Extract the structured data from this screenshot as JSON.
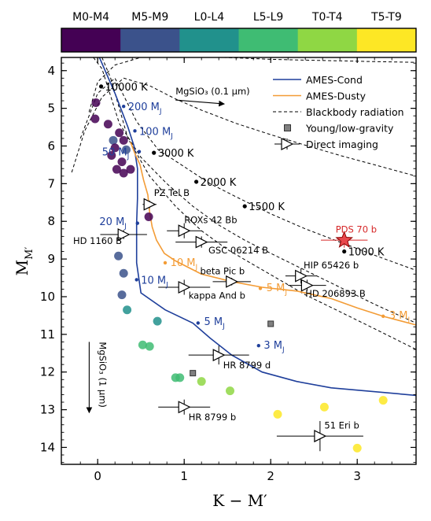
{
  "chart_data": {
    "type": "scatter",
    "xlabel": "K − M′",
    "ylabel": "M",
    "ylabel_sub": "M′",
    "xlim": [
      -0.42,
      3.68
    ],
    "ylim": [
      14.45,
      3.65
    ],
    "y_inverted": true,
    "xticks": [
      "0",
      "1",
      "2",
      "3"
    ],
    "xtick_values": [
      0,
      1,
      2,
      3
    ],
    "yticks": [
      "4",
      "5",
      "6",
      "7",
      "8",
      "9",
      "10",
      "11",
      "12",
      "13",
      "14"
    ],
    "ytick_values": [
      4,
      5,
      6,
      7,
      8,
      9,
      10,
      11,
      12,
      13,
      14
    ],
    "colorbar": {
      "labels": [
        "M0-M4",
        "M5-M9",
        "L0-L4",
        "L5-L9",
        "T0-T4",
        "T5-T9"
      ],
      "colors": [
        "#440154",
        "#3b528b",
        "#21918c",
        "#3fbc73",
        "#8fd744",
        "#fde725"
      ]
    },
    "legend": {
      "placement": "top-right",
      "entries": [
        {
          "label": "AMES-Cond",
          "style": "line",
          "color": "#1f3f9b"
        },
        {
          "label": "AMES-Dusty",
          "style": "line",
          "color": "#f39c36"
        },
        {
          "label": "Blackbody radiation",
          "style": "dashed",
          "color": "#000000"
        },
        {
          "label": "Young/low-gravity",
          "style": "square",
          "color": "#808080"
        },
        {
          "label": "Direct imaging",
          "style": "triangle",
          "color": "#000000"
        }
      ]
    },
    "field_dwarfs": [
      {
        "x": -0.02,
        "y": 4.85,
        "spt": 0
      },
      {
        "x": -0.03,
        "y": 5.28,
        "spt": 0
      },
      {
        "x": 0.12,
        "y": 5.42,
        "spt": 0
      },
      {
        "x": 0.25,
        "y": 5.65,
        "spt": 0
      },
      {
        "x": 0.18,
        "y": 5.85,
        "spt": 1
      },
      {
        "x": 0.3,
        "y": 5.85,
        "spt": 0
      },
      {
        "x": 0.2,
        "y": 6.05,
        "spt": 0
      },
      {
        "x": 0.33,
        "y": 6.1,
        "spt": 1
      },
      {
        "x": 0.16,
        "y": 6.25,
        "spt": 0
      },
      {
        "x": 0.28,
        "y": 6.42,
        "spt": 0
      },
      {
        "x": 0.22,
        "y": 6.62,
        "spt": 0
      },
      {
        "x": 0.3,
        "y": 6.72,
        "spt": 0
      },
      {
        "x": 0.38,
        "y": 6.62,
        "spt": 0
      },
      {
        "x": 0.59,
        "y": 7.88,
        "spt": 0
      },
      {
        "x": 0.24,
        "y": 8.92,
        "spt": 1
      },
      {
        "x": 0.3,
        "y": 9.38,
        "spt": 1
      },
      {
        "x": 0.28,
        "y": 9.95,
        "spt": 1
      },
      {
        "x": 0.34,
        "y": 10.35,
        "spt": 2
      },
      {
        "x": 0.69,
        "y": 10.65,
        "spt": 2
      },
      {
        "x": 0.52,
        "y": 11.28,
        "spt": 3
      },
      {
        "x": 0.6,
        "y": 11.32,
        "spt": 3
      },
      {
        "x": 0.9,
        "y": 12.15,
        "spt": 3
      },
      {
        "x": 0.95,
        "y": 12.15,
        "spt": 3
      },
      {
        "x": 1.2,
        "y": 12.25,
        "spt": 4
      },
      {
        "x": 1.53,
        "y": 12.5,
        "spt": 4
      },
      {
        "x": 2.08,
        "y": 13.12,
        "spt": 5
      },
      {
        "x": 2.62,
        "y": 12.93,
        "spt": 5
      },
      {
        "x": 3.3,
        "y": 12.75,
        "spt": 5
      },
      {
        "x": 3.0,
        "y": 14.02,
        "spt": 5
      }
    ],
    "young_low_gravity": [
      {
        "x": 2.0,
        "y": 10.72
      },
      {
        "x": 1.1,
        "y": 12.03
      }
    ],
    "direct_imaging": [
      {
        "name": "PZ Tel B",
        "x": 0.6,
        "y": 7.55,
        "xerr": 0.08,
        "yerr": 0.1
      },
      {
        "name": "ROXs 42 Bb",
        "x": 1.0,
        "y": 8.25,
        "xerr": 0.2,
        "yerr": 0.2
      },
      {
        "name": "HD 1160 B",
        "x": 0.3,
        "y": 8.35,
        "xerr": 0.27,
        "yerr": 0.12
      },
      {
        "name": "GSC 06214 B",
        "x": 1.2,
        "y": 8.55,
        "xerr": 0.3,
        "yerr": 0.15
      },
      {
        "name": "beta Pic b",
        "x": 1.55,
        "y": 9.6,
        "xerr": 0.22,
        "yerr": 0.1
      },
      {
        "name": "HIP 65426 b",
        "x": 2.35,
        "y": 9.45,
        "xerr": 0.18,
        "yerr": 0.2
      },
      {
        "name": "HD 206893 B",
        "x": 2.42,
        "y": 9.7,
        "xerr": 0.22,
        "yerr": 0.15
      },
      {
        "name": "kappa And b",
        "x": 1.0,
        "y": 9.75,
        "xerr": 0.3,
        "yerr": 0.2
      },
      {
        "name": "HR 8799 d",
        "x": 1.4,
        "y": 11.55,
        "xerr": 0.35,
        "yerr": 0.25
      },
      {
        "name": "HR 8799 b",
        "x": 1.0,
        "y": 12.93,
        "xerr": 0.3,
        "yerr": 0.2
      },
      {
        "name": "51 Eri b",
        "x": 2.57,
        "y": 13.7,
        "xerr": 0.5,
        "yerr": 0.4
      }
    ],
    "pds70": {
      "name": "PDS 70 b",
      "x": 2.85,
      "y": 8.5,
      "xerr": 0.27,
      "yerr": 0.2,
      "color": "#d62728"
    },
    "ames_cond": {
      "color": "#1f3f9b",
      "x": [
        0.02,
        0.2,
        0.35,
        0.42,
        0.46,
        0.46,
        0.45,
        0.45,
        0.5,
        0.78,
        1.1,
        1.3,
        1.55,
        1.9,
        2.3,
        2.7,
        3.1,
        3.68
      ],
      "y": [
        3.65,
        4.6,
        5.5,
        6.0,
        6.6,
        7.4,
        8.05,
        9.1,
        9.9,
        10.35,
        10.7,
        11.1,
        11.55,
        12.0,
        12.25,
        12.42,
        12.5,
        12.62
      ],
      "mass_labels": [
        {
          "text": "200 M",
          "x": 0.3,
          "y": 4.95,
          "lx": 0.35,
          "ly": 4.95
        },
        {
          "text": "100 M",
          "x": 0.43,
          "y": 5.6,
          "lx": 0.48,
          "ly": 5.6
        },
        {
          "text": "50 M",
          "x": 0.48,
          "y": 6.15,
          "lx": 0.05,
          "ly": 6.15
        },
        {
          "text": "20 M",
          "x": 0.46,
          "y": 8.05,
          "lx": 0.02,
          "ly": 8.0
        },
        {
          "text": "10 M",
          "x": 0.45,
          "y": 9.55,
          "lx": 0.5,
          "ly": 9.55
        },
        {
          "text": "5 M",
          "x": 1.16,
          "y": 10.7,
          "lx": 1.23,
          "ly": 10.65
        },
        {
          "text": "3 M",
          "x": 1.86,
          "y": 11.3,
          "lx": 1.92,
          "ly": 11.27
        }
      ]
    },
    "ames_dusty": {
      "color": "#f39c36",
      "x": [
        0.38,
        0.43,
        0.49,
        0.53,
        0.58,
        0.6,
        0.63,
        0.68,
        0.77,
        0.9,
        1.2,
        1.55,
        1.9,
        2.3,
        2.7,
        3.0,
        3.3,
        3.68
      ],
      "y": [
        5.9,
        6.2,
        6.5,
        6.9,
        7.3,
        7.75,
        8.15,
        8.5,
        8.85,
        9.05,
        9.4,
        9.6,
        9.75,
        9.85,
        10.05,
        10.3,
        10.52,
        10.75
      ],
      "mass_labels": [
        {
          "text": "10 M",
          "x": 0.78,
          "y": 9.1,
          "lx": 0.84,
          "ly": 9.08
        },
        {
          "text": "5 M",
          "x": 1.88,
          "y": 9.78,
          "lx": 1.95,
          "ly": 9.75
        },
        {
          "text": "3 M",
          "x": 3.3,
          "y": 10.52,
          "lx": 3.37,
          "ly": 10.48
        }
      ]
    },
    "blackbody": {
      "curves": [
        {
          "x": [
            -0.1,
            0.0,
            0.2,
            0.5,
            0.8,
            1.2,
            1.6,
            2.0,
            2.4,
            2.8,
            3.2,
            3.68
          ],
          "y": [
            5.1,
            4.3,
            3.85,
            3.65,
            3.62,
            3.63,
            3.66,
            3.7,
            3.72,
            3.74,
            3.76,
            3.78
          ]
        },
        {
          "x": [
            -0.3,
            -0.15,
            0.05,
            0.3,
            0.6,
            0.9,
            1.2,
            1.6,
            2.0,
            2.4,
            2.8,
            3.2,
            3.68
          ],
          "y": [
            6.7,
            5.6,
            4.7,
            4.2,
            4.4,
            4.75,
            5.05,
            5.4,
            5.7,
            5.98,
            6.25,
            6.5,
            6.8
          ]
        },
        {
          "x": [
            -0.2,
            0.0,
            0.2,
            0.45,
            0.7,
            1.0,
            1.3,
            1.6,
            2.0,
            2.4,
            2.8,
            3.2,
            3.68
          ],
          "y": [
            5.8,
            4.6,
            4.2,
            5.35,
            6.1,
            6.55,
            7.0,
            7.35,
            7.8,
            8.2,
            8.55,
            8.9,
            9.3
          ]
        },
        {
          "x": [
            -0.05,
            0.05,
            0.25,
            0.5,
            0.8,
            1.1,
            1.4,
            1.7,
            2.0,
            2.4,
            2.8,
            3.2,
            3.68
          ],
          "y": [
            3.65,
            3.95,
            5.4,
            6.3,
            7.0,
            7.6,
            8.1,
            8.5,
            8.85,
            9.3,
            9.75,
            10.2,
            10.7
          ]
        },
        {
          "x": [
            0.05,
            0.15,
            0.35,
            0.6,
            0.9,
            1.2,
            1.5,
            1.8,
            2.1,
            2.4,
            2.8,
            3.2,
            3.68
          ],
          "y": [
            3.65,
            4.2,
            5.8,
            6.8,
            7.6,
            8.25,
            8.75,
            9.15,
            9.55,
            9.95,
            10.4,
            10.85,
            11.4
          ]
        }
      ],
      "temperature_points": [
        {
          "label": "10000 K",
          "x": 0.04,
          "y": 4.42
        },
        {
          "label": "3000 K",
          "x": 0.65,
          "y": 6.18
        },
        {
          "label": "2000 K",
          "x": 1.14,
          "y": 6.95
        },
        {
          "label": "1500 K",
          "x": 1.7,
          "y": 7.6
        },
        {
          "label": "1000 K",
          "x": 2.85,
          "y": 8.8
        }
      ]
    },
    "annotations": [
      {
        "text": "MgSiO₃ (0.1 μm)",
        "x": 0.9,
        "y": 4.55,
        "arrow_from": [
          0.95,
          5.07
        ],
        "arrow_to": [
          1.4,
          5.4
        ]
      },
      {
        "text": "MgSiO₃ (1 μm)",
        "x": 0.02,
        "y": 11.2,
        "arrow_from": [
          -0.03,
          12.0
        ],
        "arrow_to": [
          -0.03,
          13.1
        ]
      }
    ]
  }
}
